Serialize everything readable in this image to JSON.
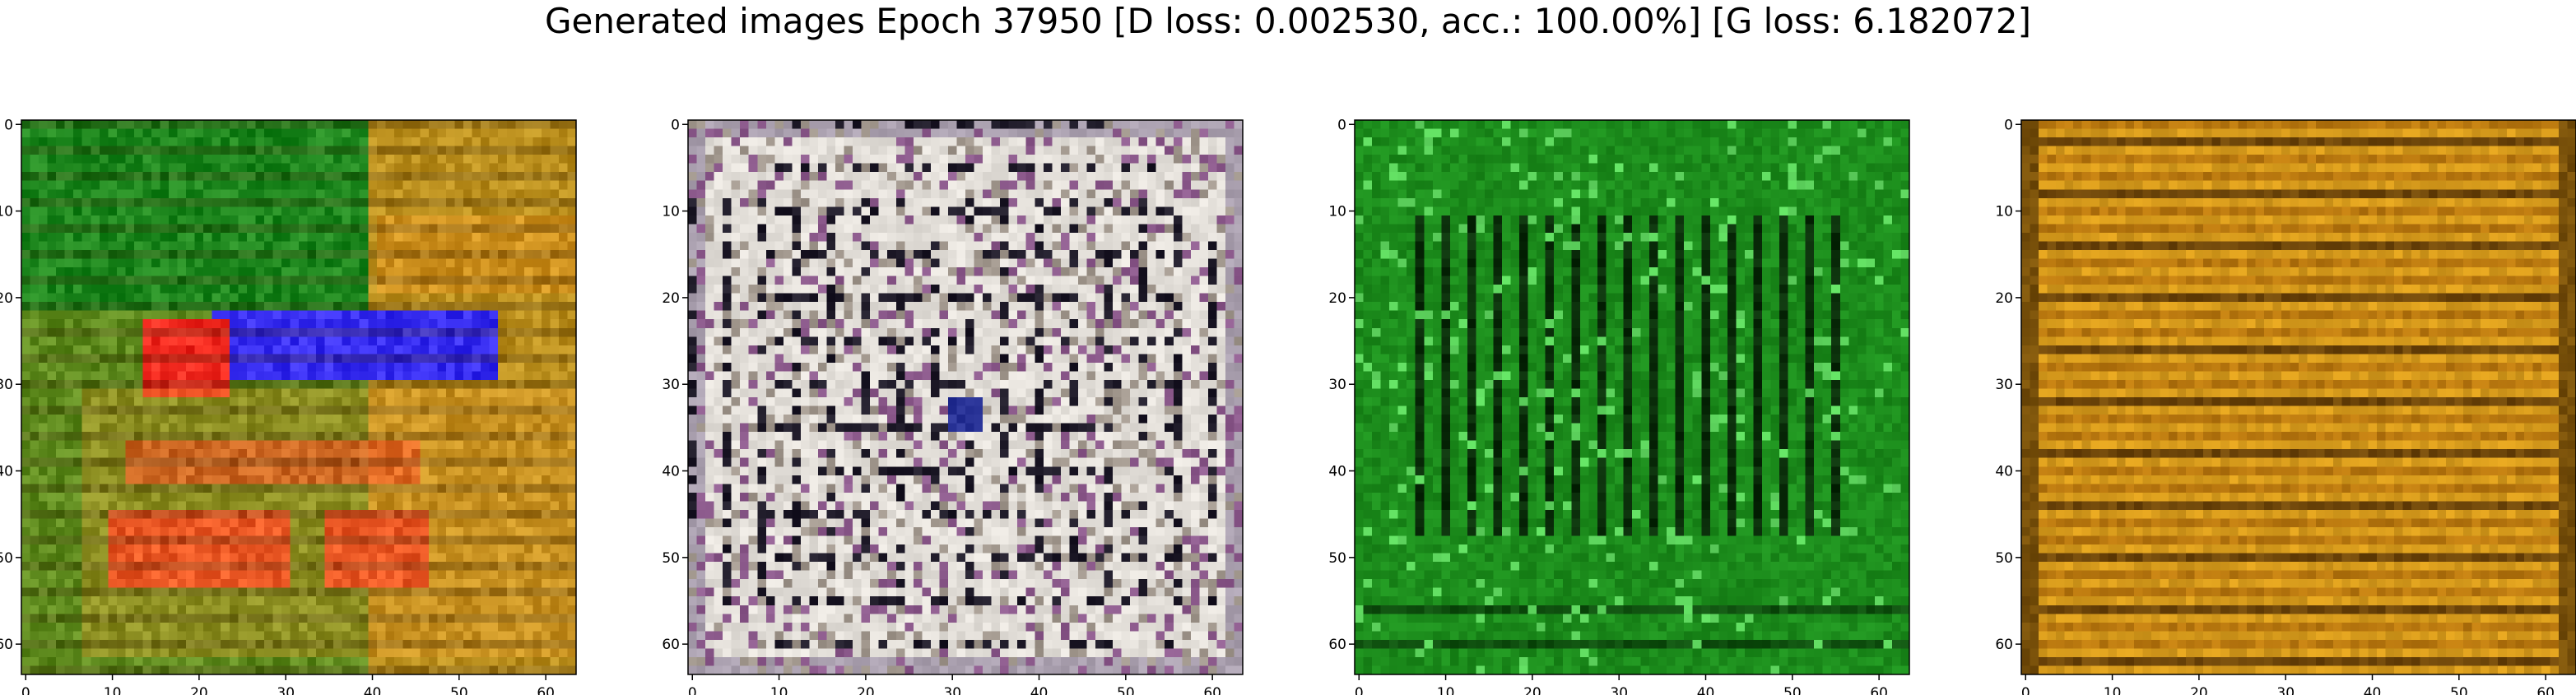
{
  "figure": {
    "title": "Generated images Epoch 37950 [D loss: 0.002530, acc.: 100.00%] [G loss: 6.182072]"
  },
  "chart_data": [
    {
      "type": "heatmap",
      "description_key": "image-1",
      "xlim": [
        -0.5,
        63.5
      ],
      "ylim": [
        63.5,
        -0.5
      ],
      "xticks": [
        0,
        10,
        20,
        30,
        40,
        50,
        60
      ],
      "yticks": [
        0,
        10,
        20,
        30,
        40,
        50,
        60
      ],
      "xtick_labels": [
        "0",
        "10",
        "20",
        "30",
        "40",
        "50",
        "60"
      ],
      "ytick_labels": [
        "0",
        "10",
        "20",
        "30",
        "40",
        "50",
        "60"
      ],
      "dominant_colors": [
        "#1f8a1f",
        "#d9901a",
        "#3a2cf0",
        "#f02a1a"
      ]
    },
    {
      "type": "heatmap",
      "description_key": "image-2",
      "xlim": [
        -0.5,
        63.5
      ],
      "ylim": [
        63.5,
        -0.5
      ],
      "xticks": [
        0,
        10,
        20,
        30,
        40,
        50,
        60
      ],
      "yticks": [
        0,
        10,
        20,
        30,
        40,
        50,
        60
      ],
      "xtick_labels": [
        "0",
        "10",
        "20",
        "30",
        "40",
        "50",
        "60"
      ],
      "ytick_labels": [
        "0",
        "10",
        "20",
        "30",
        "40",
        "50",
        "60"
      ],
      "dominant_colors": [
        "#e6e2dc",
        "#b9b1a8",
        "#1d1a22",
        "#8a5a8a"
      ]
    },
    {
      "type": "heatmap",
      "description_key": "image-3",
      "xlim": [
        -0.5,
        63.5
      ],
      "ylim": [
        63.5,
        -0.5
      ],
      "xticks": [
        0,
        10,
        20,
        30,
        40,
        50,
        60
      ],
      "yticks": [
        0,
        10,
        20,
        30,
        40,
        50,
        60
      ],
      "xtick_labels": [
        "0",
        "10",
        "20",
        "30",
        "40",
        "50",
        "60"
      ],
      "ytick_labels": [
        "0",
        "10",
        "20",
        "30",
        "40",
        "50",
        "60"
      ],
      "dominant_colors": [
        "#1a8c1a",
        "#0f5e0f",
        "#0a2a0a",
        "#5cd65c"
      ]
    },
    {
      "type": "heatmap",
      "description_key": "image-4",
      "xlim": [
        -0.5,
        63.5
      ],
      "ylim": [
        63.5,
        -0.5
      ],
      "xticks": [
        0,
        10,
        20,
        30,
        40,
        50,
        60
      ],
      "yticks": [
        0,
        10,
        20,
        30,
        40,
        50,
        60
      ],
      "xtick_labels": [
        "0",
        "10",
        "20",
        "30",
        "40",
        "50",
        "60"
      ],
      "ytick_labels": [
        "0",
        "10",
        "20",
        "30",
        "40",
        "50",
        "60"
      ],
      "dominant_colors": [
        "#d99a1a",
        "#b9780f",
        "#5a3a05",
        "#e8b030"
      ]
    }
  ]
}
